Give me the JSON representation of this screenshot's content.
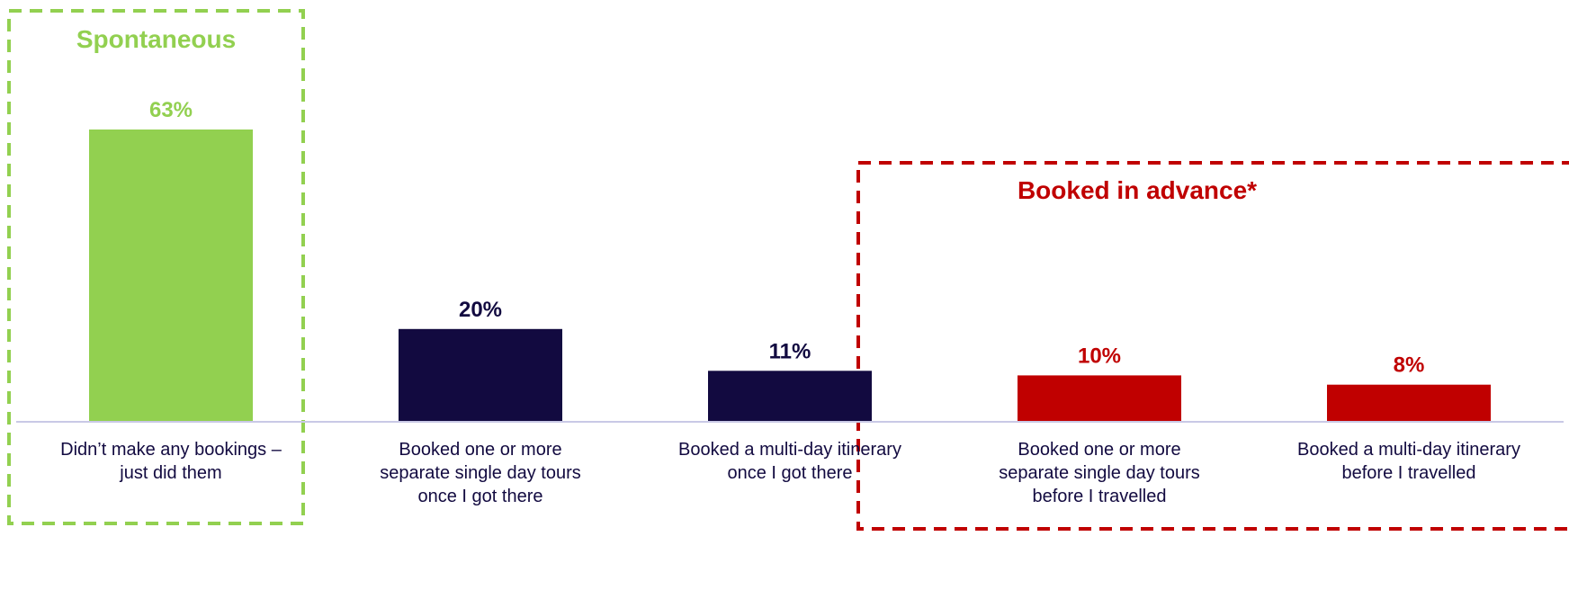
{
  "chart_data": {
    "type": "bar",
    "categories": [
      [
        "Didn’t make any bookings –",
        "just did them"
      ],
      [
        "Booked one or more",
        "separate single day tours",
        "once I got there"
      ],
      [
        "Booked a multi-day itinerary",
        "once I got there"
      ],
      [
        "Booked one or more",
        "separate single day tours",
        "before I travelled"
      ],
      [
        "Booked a multi-day itinerary",
        "before I travelled"
      ]
    ],
    "values": [
      63,
      20,
      11,
      10,
      8
    ],
    "value_labels": [
      "63%",
      "20%",
      "11%",
      "10%",
      "8%"
    ],
    "bar_colors": [
      "#92D050",
      "#120A40",
      "#120A40",
      "#C00000",
      "#C00000"
    ],
    "label_colors": [
      "#92D050",
      "#120A40",
      "#120A40",
      "#C00000",
      "#C00000"
    ],
    "axis_line_color": "#C9C9E6",
    "ylim": [
      0,
      63
    ],
    "groups": [
      {
        "title": "Spontaneous",
        "color": "#92D050",
        "categories": [
          0
        ]
      },
      {
        "title": "Booked in advance*",
        "color": "#C00000",
        "categories": [
          3,
          4
        ]
      }
    ],
    "grid": false
  }
}
